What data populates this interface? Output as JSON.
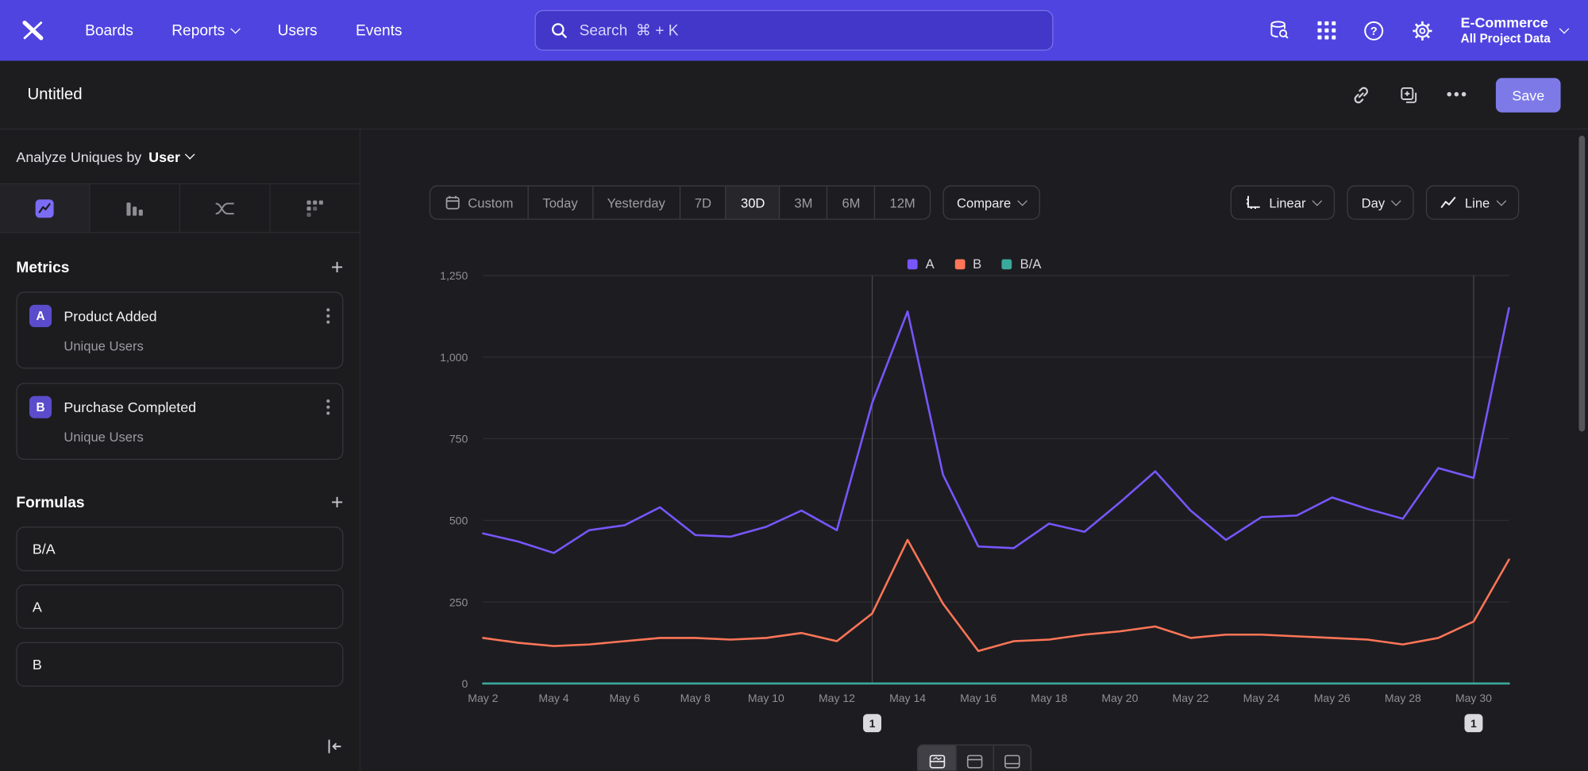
{
  "topnav": {
    "items": [
      "Boards",
      "Reports",
      "Users",
      "Events"
    ],
    "search_placeholder": "Search  ⌘ + K",
    "project": {
      "name": "E-Commerce",
      "subtitle": "All Project Data"
    }
  },
  "report_header": {
    "title": "Untitled",
    "save_label": "Save"
  },
  "sidebar": {
    "analyze_prefix": "Analyze Uniques by",
    "analyze_value": "User",
    "metrics_title": "Metrics",
    "metrics": [
      {
        "badge": "A",
        "name": "Product Added",
        "sub": "Unique Users"
      },
      {
        "badge": "B",
        "name": "Purchase Completed",
        "sub": "Unique Users"
      }
    ],
    "formulas_title": "Formulas",
    "formulas": [
      "B/A",
      "A",
      "B"
    ]
  },
  "toolbar": {
    "ranges": [
      "Custom",
      "Today",
      "Yesterday",
      "7D",
      "30D",
      "3M",
      "6M",
      "12M"
    ],
    "selected_range": "30D",
    "compare_label": "Compare",
    "linear_label": "Linear",
    "day_label": "Day",
    "line_label": "Line"
  },
  "legend": [
    {
      "label": "A",
      "color": "#7856FF"
    },
    {
      "label": "B",
      "color": "#FF7557"
    },
    {
      "label": "B/A",
      "color": "#3BA99C"
    }
  ],
  "chart_data": {
    "type": "line",
    "title": "",
    "xlabel": "",
    "ylabel": "",
    "ylim": [
      0,
      1250
    ],
    "yticks": [
      0,
      250,
      500,
      750,
      1000,
      1250
    ],
    "x_tick_every": 2,
    "grid": "horizontal",
    "legend_position": "top",
    "x": [
      "May 2",
      "May 3",
      "May 4",
      "May 5",
      "May 6",
      "May 7",
      "May 8",
      "May 9",
      "May 10",
      "May 11",
      "May 12",
      "May 13",
      "May 14",
      "May 15",
      "May 16",
      "May 17",
      "May 18",
      "May 19",
      "May 20",
      "May 21",
      "May 22",
      "May 23",
      "May 24",
      "May 25",
      "May 26",
      "May 27",
      "May 28",
      "May 29",
      "May 30",
      "May 31"
    ],
    "series": [
      {
        "name": "A",
        "color": "#7856FF",
        "values": [
          460,
          435,
          400,
          470,
          485,
          540,
          455,
          450,
          480,
          530,
          470,
          860,
          1140,
          640,
          420,
          415,
          490,
          465,
          555,
          650,
          530,
          440,
          510,
          515,
          570,
          535,
          505,
          660,
          630,
          1150
        ]
      },
      {
        "name": "B",
        "color": "#FF7557",
        "values": [
          140,
          125,
          115,
          120,
          130,
          140,
          140,
          135,
          140,
          155,
          130,
          215,
          440,
          245,
          100,
          130,
          135,
          150,
          160,
          175,
          140,
          150,
          150,
          145,
          140,
          135,
          120,
          140,
          190,
          380
        ]
      },
      {
        "name": "B/A",
        "color": "#3BA99C",
        "values": [
          0.3,
          0.29,
          0.29,
          0.26,
          0.27,
          0.26,
          0.31,
          0.3,
          0.29,
          0.29,
          0.28,
          0.25,
          0.39,
          0.38,
          0.24,
          0.31,
          0.28,
          0.32,
          0.29,
          0.27,
          0.26,
          0.34,
          0.29,
          0.28,
          0.25,
          0.25,
          0.24,
          0.21,
          0.3,
          0.33
        ]
      }
    ],
    "annotations": [
      {
        "label": "1",
        "index": 11
      },
      {
        "label": "1",
        "index": 28
      }
    ]
  },
  "icons": {
    "logo": "mixpanel-x",
    "search": "magnifier",
    "data": "database-magnifier",
    "apps": "grid-9",
    "help": "question-circle",
    "settings": "gear",
    "link": "chain-link",
    "copy_to_board": "copy-plus",
    "more": "ellipsis",
    "custom_range": "calendar",
    "linear": "axis",
    "line_type": "line-chart",
    "collapse": "arrow-to-left-bar"
  }
}
